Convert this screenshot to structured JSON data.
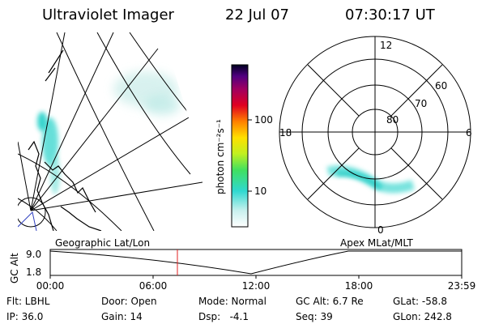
{
  "header": {
    "instrument": "Ultraviolet Imager",
    "date": "22 Jul 07",
    "time": "07:30:17 UT"
  },
  "colorbar": {
    "label": "photon cm⁻²s⁻¹",
    "ticks": [
      "100",
      "10"
    ]
  },
  "polar": {
    "mlt_labels": [
      "12",
      "18",
      "6",
      "0"
    ],
    "mlat_labels": [
      "80",
      "70",
      "60"
    ]
  },
  "orbit": {
    "left_label": "Geographic Lat/Lon",
    "right_label": "Apex MLat/MLT",
    "y_label": "GC Alt",
    "y_ticks": [
      "9.0",
      "1.8"
    ],
    "x_ticks": [
      "00:00",
      "06:00",
      "12:00",
      "18:00",
      "23:59"
    ]
  },
  "status": {
    "rows": [
      [
        "Flt: LBHL",
        "Door: Open",
        "Mode: Normal",
        "GC Alt: 6.7 Re",
        "GLat: -58.8"
      ],
      [
        "IP: 36.0",
        "Gain: 14",
        "Dsp:   -4.1",
        "Seq: 39",
        "GLon: 242.8"
      ]
    ]
  }
}
